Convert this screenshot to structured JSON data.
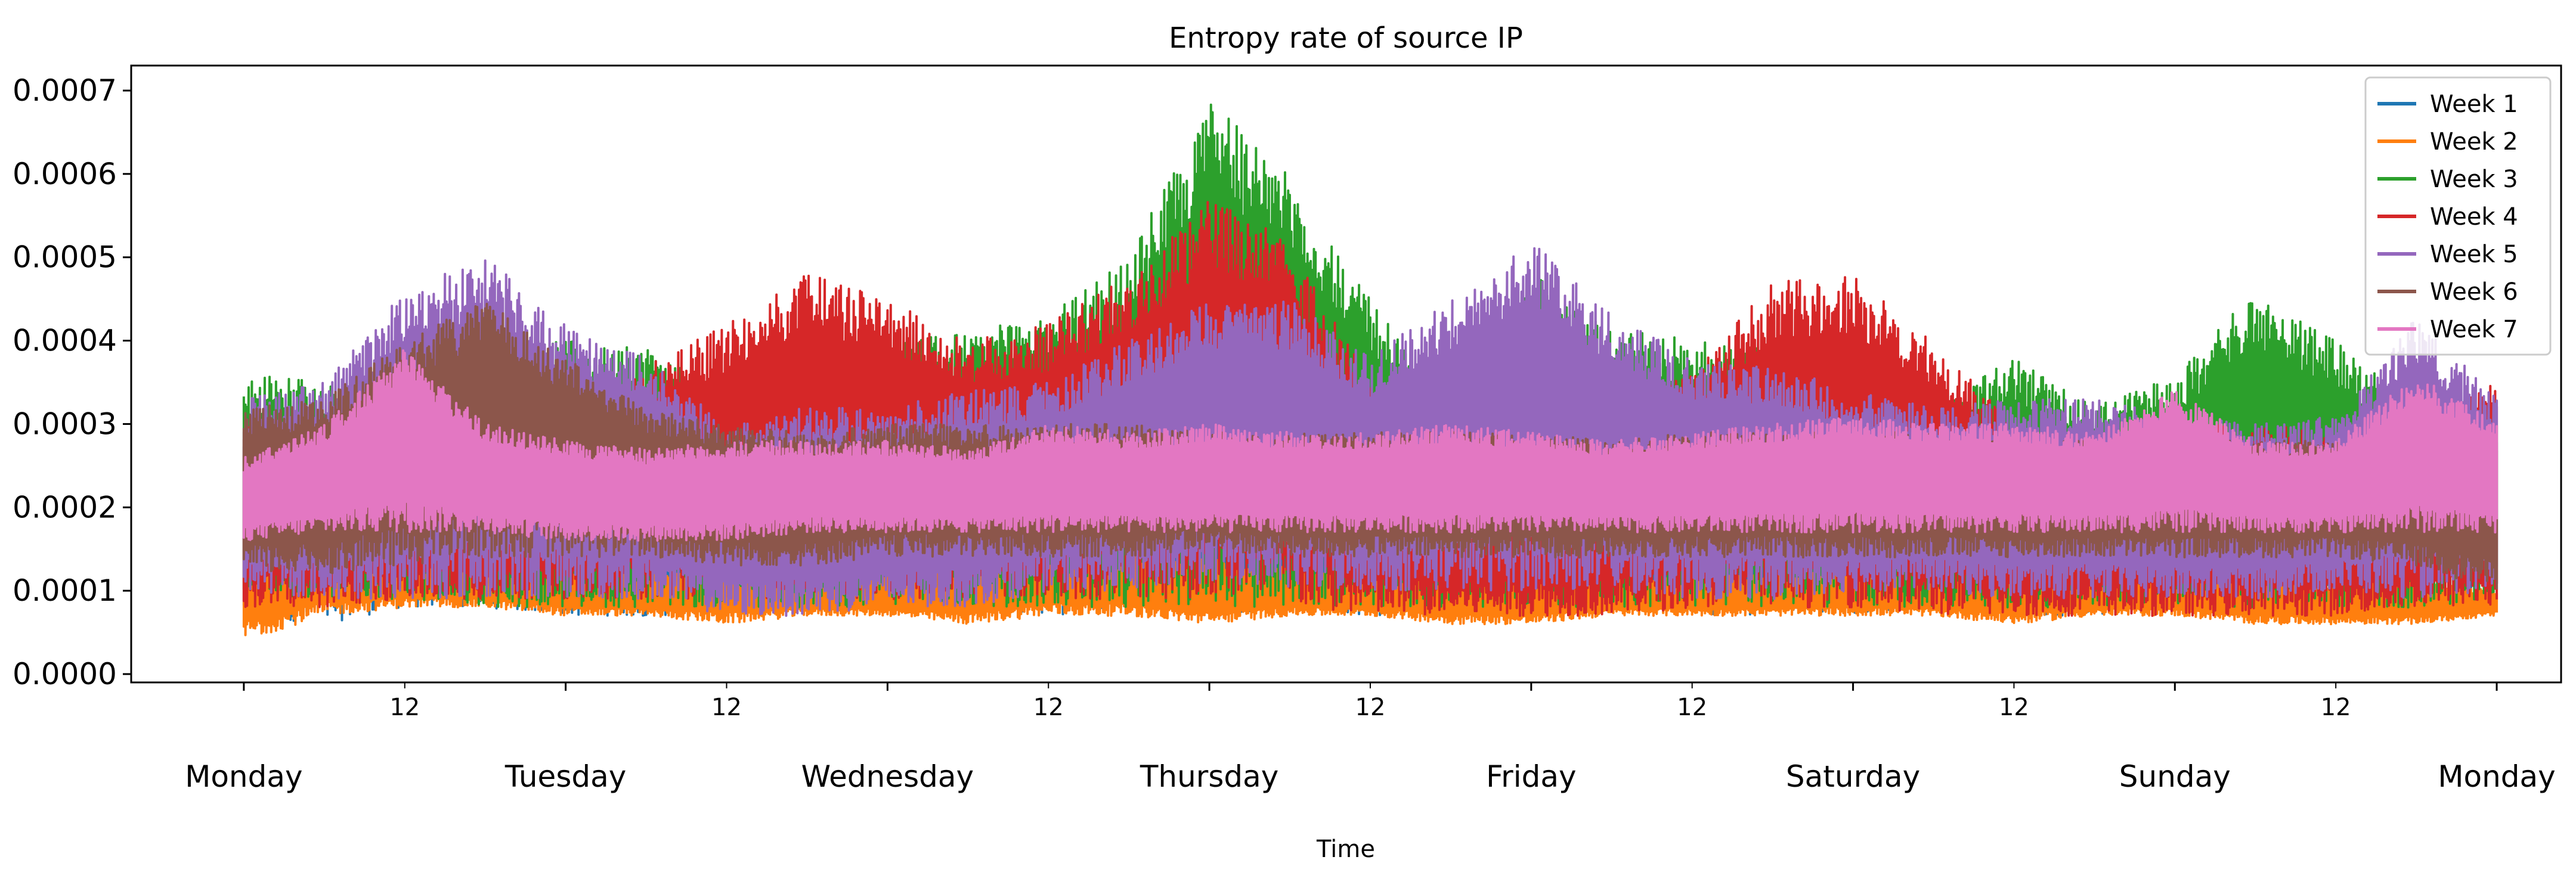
{
  "chart_data": {
    "type": "line",
    "title": "Entropy rate of source IP",
    "xlabel": "Time",
    "ylabel": "",
    "ylim": [
      -1e-05,
      0.00073
    ],
    "xlim": [
      -0.35,
      7.2
    ],
    "y_ticks": [
      "0.0000",
      "0.0001",
      "0.0002",
      "0.0003",
      "0.0004",
      "0.0005",
      "0.0006",
      "0.0007"
    ],
    "y_tick_values": [
      0,
      0.0001,
      0.0002,
      0.0003,
      0.0004,
      0.0005,
      0.0006,
      0.0007
    ],
    "day_ticks": [
      "Monday",
      "Tuesday",
      "Wednesday",
      "Thursday",
      "Friday",
      "Saturday",
      "Sunday",
      "Monday"
    ],
    "hour_ticks": [
      "12",
      "12",
      "12",
      "12",
      "12",
      "12",
      "12"
    ],
    "legend_position": "top-right",
    "grid": false,
    "x_days": [
      0,
      0.25,
      0.5,
      0.75,
      1.0,
      1.25,
      1.5,
      1.75,
      2.0,
      2.25,
      2.5,
      2.75,
      3.0,
      3.25,
      3.5,
      3.75,
      4.0,
      4.25,
      4.5,
      4.75,
      5.0,
      5.25,
      5.5,
      5.75,
      6.0,
      6.25,
      6.5,
      6.75,
      7.0
    ],
    "series": [
      {
        "name": "Week 1",
        "color": "#1f77b4",
        "upper": [
          0.0003,
          0.0003,
          0.00031,
          0.0003,
          0.00029,
          0.0003,
          0.00029,
          0.0003,
          0.00029,
          0.0003,
          0.00029,
          0.0003,
          0.00029,
          0.00029,
          0.0003,
          0.00029,
          0.00029,
          0.00029,
          0.0003,
          0.00029,
          0.00029,
          0.00029,
          0.00029,
          0.00029,
          0.00029,
          0.00029,
          0.00029,
          0.00029,
          0.0003
        ],
        "lower": [
          7e-05,
          6e-05,
          8e-05,
          8e-05,
          7e-05,
          7e-05,
          7e-05,
          8e-05,
          8e-05,
          8e-05,
          7e-05,
          8e-05,
          7e-05,
          8e-05,
          7e-05,
          7e-05,
          8e-05,
          8e-05,
          7e-05,
          7e-05,
          7e-05,
          8e-05,
          7e-05,
          7e-05,
          8e-05,
          8e-05,
          7e-05,
          8e-05,
          9e-05
        ]
      },
      {
        "name": "Week 2",
        "color": "#ff7f0e",
        "upper": [
          0.00018,
          0.00016,
          0.00015,
          0.00014,
          0.00013,
          0.00012,
          0.00014,
          0.00012,
          0.00012,
          0.00013,
          0.00016,
          0.00015,
          0.00014,
          0.00013,
          0.00012,
          0.00013,
          0.00012,
          0.00012,
          0.00012,
          0.00012,
          0.00013,
          0.00012,
          0.00013,
          0.00012,
          0.00012,
          0.00012,
          0.00011,
          0.00011,
          0.0001
        ],
        "lower": [
          4e-05,
          7e-05,
          8e-05,
          8e-05,
          7e-05,
          7e-05,
          6e-05,
          7e-05,
          7e-05,
          6e-05,
          7e-05,
          7e-05,
          6e-05,
          7e-05,
          7e-05,
          6e-05,
          6e-05,
          7e-05,
          7e-05,
          7e-05,
          7e-05,
          7e-05,
          6e-05,
          7e-05,
          7e-05,
          6e-05,
          6e-05,
          6e-05,
          7e-05
        ]
      },
      {
        "name": "Week 3",
        "color": "#2ca02c",
        "upper": [
          0.00036,
          0.00035,
          0.00038,
          0.0004,
          0.0004,
          0.00039,
          0.00035,
          0.00038,
          0.0004,
          0.00041,
          0.00043,
          0.0005,
          0.00069,
          0.0006,
          0.00045,
          0.00032,
          0.00048,
          0.00042,
          0.0004,
          0.00039,
          0.00036,
          0.00033,
          0.00038,
          0.00032,
          0.00036,
          0.00046,
          0.0004,
          0.00032,
          0.00031
        ],
        "lower": [
          9e-05,
          9e-05,
          9e-05,
          8e-05,
          8e-05,
          8e-05,
          8e-05,
          8e-05,
          8e-05,
          8e-05,
          8e-05,
          8e-05,
          8e-05,
          8e-05,
          8e-05,
          8e-05,
          8e-05,
          8e-05,
          8e-05,
          8e-05,
          8e-05,
          8e-05,
          8e-05,
          8e-05,
          8e-05,
          8e-05,
          8e-05,
          8e-05,
          9e-05
        ]
      },
      {
        "name": "Week 4",
        "color": "#d62728",
        "upper": [
          0.00031,
          0.0003,
          0.00031,
          0.0003,
          0.0003,
          0.00037,
          0.00042,
          0.00048,
          0.00045,
          0.0004,
          0.00042,
          0.00048,
          0.00057,
          0.00052,
          0.00035,
          0.0003,
          0.00031,
          0.00032,
          0.00036,
          0.00047,
          0.00048,
          0.0004,
          0.0003,
          0.00029,
          0.0003,
          0.0003,
          0.00029,
          0.0003,
          0.00035
        ],
        "lower": [
          8e-05,
          8e-05,
          9e-05,
          9e-05,
          9e-05,
          9e-05,
          9e-05,
          9e-05,
          9e-05,
          9e-05,
          9e-05,
          9e-05,
          9e-05,
          8e-05,
          7e-05,
          7e-05,
          7e-05,
          7e-05,
          8e-05,
          8e-05,
          8e-05,
          7e-05,
          7e-05,
          7e-05,
          7e-05,
          7e-05,
          7e-05,
          8e-05,
          8e-05
        ]
      },
      {
        "name": "Week 5",
        "color": "#9467bd",
        "upper": [
          0.00033,
          0.00035,
          0.00046,
          0.0005,
          0.00042,
          0.00038,
          0.0003,
          0.00032,
          0.00032,
          0.00034,
          0.00035,
          0.0004,
          0.00045,
          0.00045,
          0.00038,
          0.00045,
          0.00052,
          0.00043,
          0.00038,
          0.00037,
          0.00034,
          0.00032,
          0.00033,
          0.00033,
          0.00031,
          0.0003,
          0.00031,
          0.00043,
          0.00033
        ],
        "lower": [
          0.0001,
          9e-05,
          9e-05,
          9e-05,
          9e-05,
          9e-05,
          7e-05,
          7e-05,
          8e-05,
          8e-05,
          0.0001,
          0.0001,
          0.00011,
          0.0001,
          0.0001,
          0.0001,
          0.0001,
          0.0001,
          9e-05,
          9e-05,
          0.0001,
          0.0001,
          9e-05,
          9e-05,
          9e-05,
          9e-05,
          0.0001,
          9e-05,
          0.0001
        ]
      },
      {
        "name": "Week 6",
        "color": "#8c564b",
        "upper": [
          0.00032,
          0.00033,
          0.0004,
          0.00045,
          0.00038,
          0.00032,
          0.0003,
          0.00029,
          0.0003,
          0.0003,
          0.0003,
          0.0003,
          0.00029,
          0.00029,
          0.00029,
          0.00029,
          0.00029,
          0.00028,
          0.00029,
          0.00029,
          0.00029,
          0.00029,
          0.00028,
          0.00028,
          0.00028,
          0.00028,
          0.00028,
          0.00028,
          0.0003
        ],
        "lower": [
          0.00012,
          0.00012,
          0.00013,
          0.00014,
          0.00014,
          0.00014,
          0.00013,
          0.00013,
          0.00014,
          0.00014,
          0.00014,
          0.00014,
          0.00015,
          0.00014,
          0.00014,
          0.00014,
          0.00014,
          0.00014,
          0.00014,
          0.00014,
          0.00014,
          0.00014,
          0.00014,
          0.00014,
          0.00014,
          0.00014,
          0.00014,
          0.00013,
          0.0001
        ]
      },
      {
        "name": "Week 7",
        "color": "#e377c2",
        "upper": [
          0.00026,
          0.0003,
          0.00039,
          0.0003,
          0.00028,
          0.00027,
          0.00028,
          0.00028,
          0.00028,
          0.00027,
          0.0003,
          0.00029,
          0.0003,
          0.00029,
          0.00029,
          0.0003,
          0.00029,
          0.00028,
          0.00029,
          0.0003,
          0.00031,
          0.0003,
          0.0003,
          0.00029,
          0.00034,
          0.00028,
          0.00028,
          0.00036,
          0.0003
        ],
        "lower": [
          0.00016,
          0.00017,
          0.00017,
          0.00017,
          0.00016,
          0.00016,
          0.00016,
          0.00017,
          0.00017,
          0.00017,
          0.00017,
          0.00017,
          0.00017,
          0.00017,
          0.00017,
          0.00017,
          0.00017,
          0.00017,
          0.00017,
          0.00017,
          0.00017,
          0.00017,
          0.00017,
          0.00017,
          0.00017,
          0.00017,
          0.00017,
          0.00017,
          0.00017
        ]
      }
    ]
  }
}
